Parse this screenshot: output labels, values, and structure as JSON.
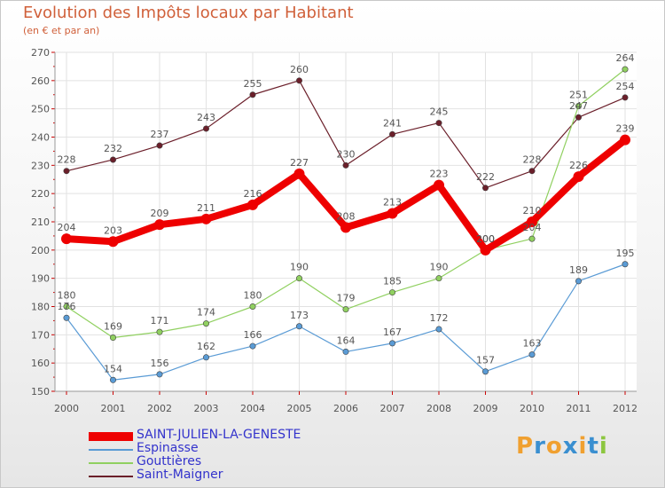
{
  "header": {
    "title": "Evolution des Impôts locaux par Habitant",
    "subtitle": "(en € et par an)"
  },
  "logo": {
    "letters": [
      "P",
      "r",
      "o",
      "x",
      "i",
      "t",
      "i"
    ],
    "colors": [
      "#f0a030",
      "#3a8fd0",
      "#f0a030",
      "#3a8fd0",
      "#f0a030",
      "#3a8fd0",
      "#8cc63f"
    ]
  },
  "chart_data": {
    "type": "line",
    "title": "Evolution des Impôts locaux par Habitant",
    "subtitle": "(en € et par an)",
    "xlabel": "",
    "ylabel": "",
    "x": [
      "2000",
      "2001",
      "2002",
      "2003",
      "2004",
      "2005",
      "2006",
      "2007",
      "2008",
      "2009",
      "2010",
      "2011",
      "2012"
    ],
    "ylim": [
      150,
      270
    ],
    "yticks": [
      150,
      160,
      170,
      180,
      190,
      200,
      210,
      220,
      230,
      240,
      250,
      260,
      270
    ],
    "grid": true,
    "legend_position": "bottom-left",
    "series": [
      {
        "name": "Saint-Maigner",
        "color": "#6b1f2a",
        "emphasis": false,
        "values": [
          228,
          232,
          237,
          243,
          255,
          260,
          230,
          241,
          245,
          222,
          228,
          247,
          254
        ]
      },
      {
        "name": "Espinasse",
        "color": "#5a9bd5",
        "emphasis": false,
        "values": [
          176,
          154,
          156,
          162,
          166,
          173,
          164,
          167,
          172,
          157,
          163,
          189,
          195
        ]
      },
      {
        "name": "Gouttières",
        "color": "#90d060",
        "emphasis": false,
        "values": [
          180,
          169,
          171,
          174,
          180,
          190,
          179,
          185,
          190,
          200,
          204,
          251,
          264
        ]
      },
      {
        "name": "SAINT-JULIEN-LA-GENESTE",
        "color": "#ee0000",
        "emphasis": true,
        "values": [
          204,
          203,
          209,
          211,
          216,
          227,
          208,
          213,
          223,
          200,
          210,
          226,
          239
        ]
      }
    ],
    "legend_order": [
      "SAINT-JULIEN-LA-GENESTE",
      "Espinasse",
      "Gouttières",
      "Saint-Maigner"
    ]
  }
}
